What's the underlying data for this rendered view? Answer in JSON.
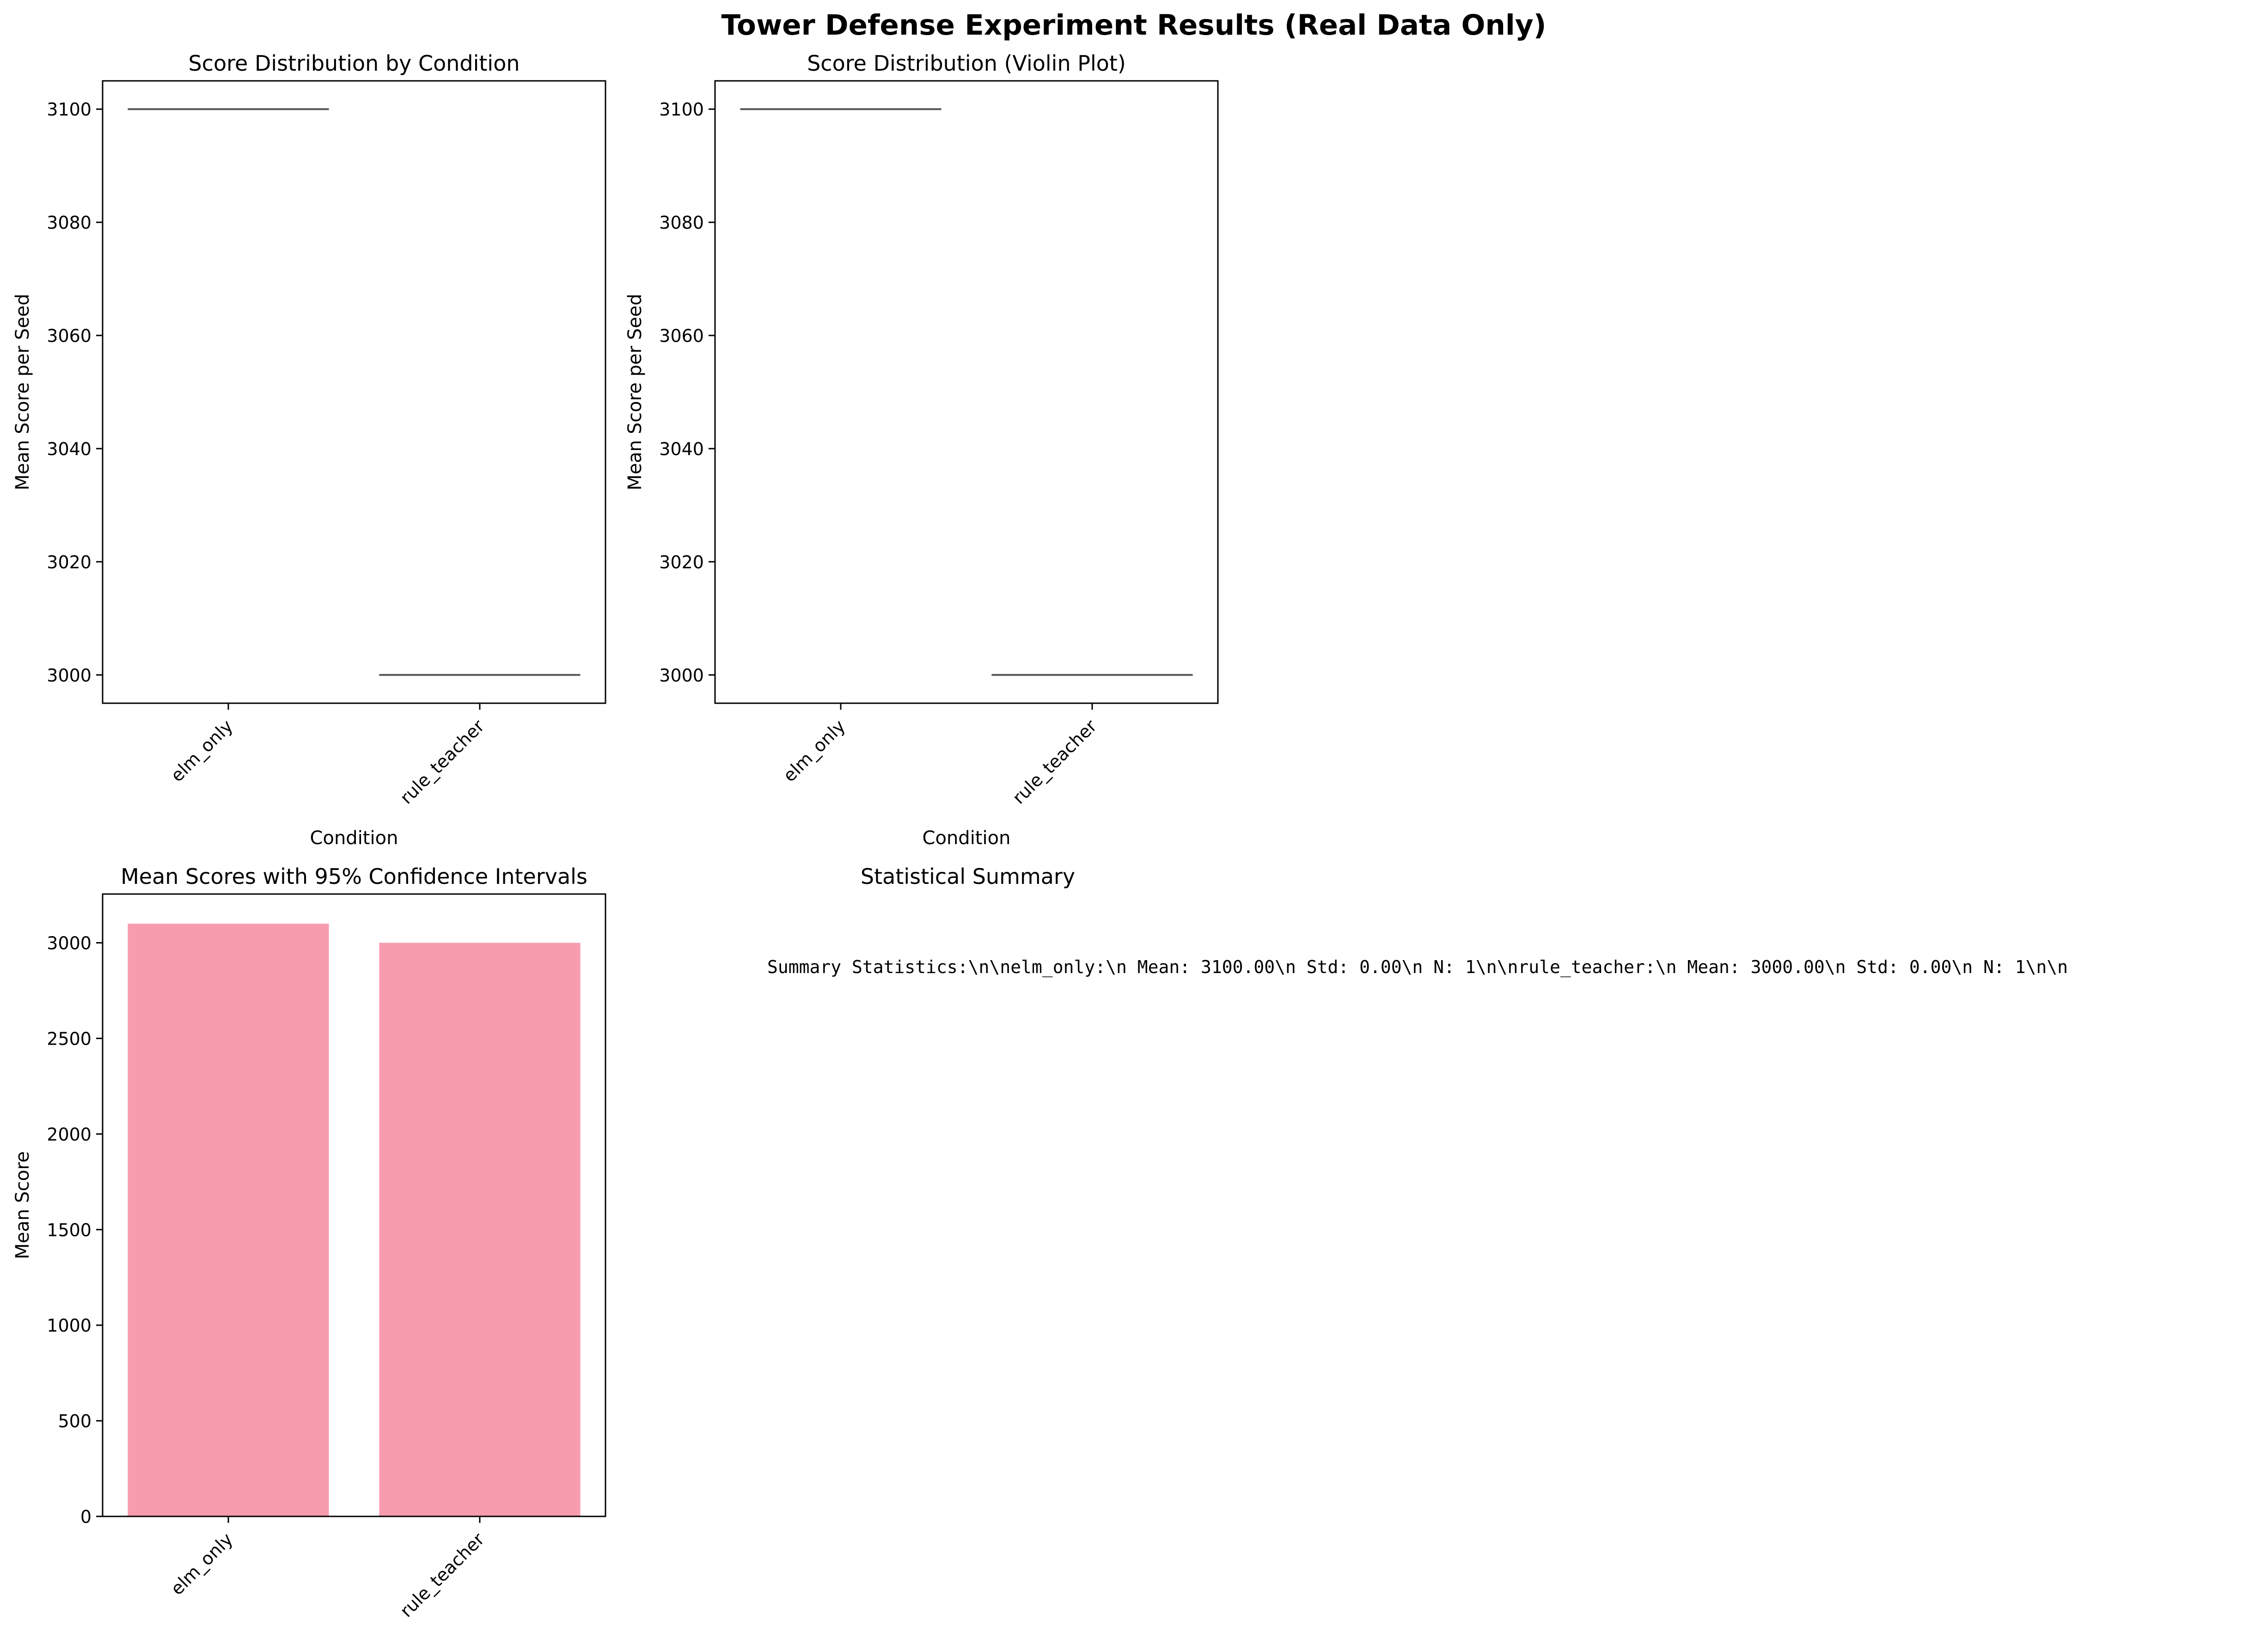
{
  "figure": {
    "title": "Tower Defense Experiment Results (Real Data Only)"
  },
  "colors": {
    "bar_fill": "#f79caf",
    "median_line": "#555555",
    "axes": "#000000"
  },
  "chart_data": [
    {
      "type": "box",
      "title": "Score Distribution by Condition",
      "xlabel": "Condition",
      "ylabel": "Mean Score per Seed",
      "categories": [
        "elm_only",
        "rule_teacher"
      ],
      "values": [
        3100,
        3000
      ],
      "ylim": [
        2995,
        3105
      ],
      "yticks": [
        3000,
        3020,
        3040,
        3060,
        3080,
        3100
      ],
      "grid": false
    },
    {
      "type": "violin",
      "title": "Score Distribution (Violin Plot)",
      "xlabel": "Condition",
      "ylabel": "Mean Score per Seed",
      "categories": [
        "elm_only",
        "rule_teacher"
      ],
      "values": [
        3100,
        3000
      ],
      "ylim": [
        2995,
        3105
      ],
      "yticks": [
        3000,
        3020,
        3040,
        3060,
        3080,
        3100
      ],
      "grid": false
    },
    {
      "type": "bar",
      "title": "Mean Scores with 95% Confidence Intervals",
      "xlabel": "",
      "ylabel": "Mean Score",
      "categories": [
        "elm_only",
        "rule_teacher"
      ],
      "values": [
        3100,
        3000
      ],
      "ylim": [
        0,
        3255
      ],
      "yticks": [
        0,
        500,
        1000,
        1500,
        2000,
        2500,
        3000
      ],
      "grid": false
    },
    {
      "type": "table",
      "title": "Statistical Summary",
      "text": "Summary Statistics:\\n\\nelm_only:\\n  Mean: 3100.00\\n  Std: 0.00\\n  N: 1\\n\\nrule_teacher:\\n  Mean: 3000.00\\n  Std: 0.00\\n  N: 1\\n\\n"
    }
  ]
}
